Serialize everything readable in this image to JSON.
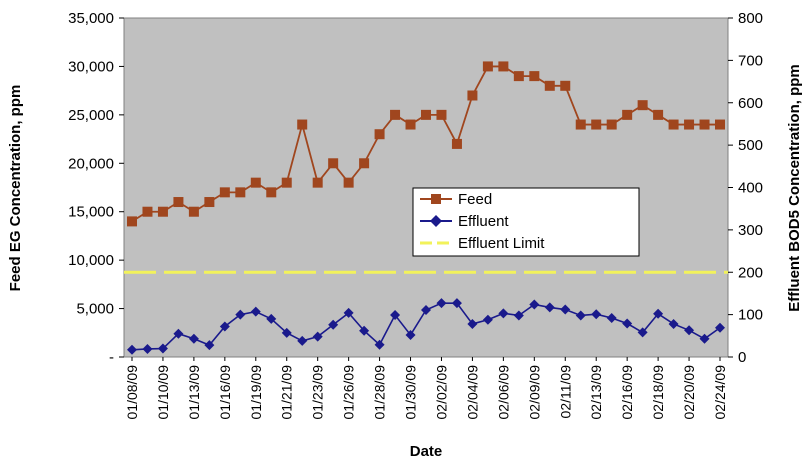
{
  "chart_data": {
    "type": "line",
    "xlabel": "Date",
    "ylabel_left": "Feed EG Concentration, ppm",
    "ylabel_right": "Effluent BOD5 Concentration, ppm",
    "ylim_left": [
      0,
      35000
    ],
    "ylim_right": [
      0,
      800
    ],
    "yticks_left": [
      "-",
      "5,000",
      "10,000",
      "15,000",
      "20,000",
      "25,000",
      "30,000",
      "35,000"
    ],
    "yticks_right": [
      "0",
      "100",
      "200",
      "300",
      "400",
      "500",
      "600",
      "700",
      "800"
    ],
    "x_tick_labels": [
      "01/08/09",
      "01/10/09",
      "01/13/09",
      "01/16/09",
      "01/19/09",
      "01/21/09",
      "01/23/09",
      "01/26/09",
      "01/28/09",
      "01/30/09",
      "02/02/09",
      "02/04/09",
      "02/06/09",
      "02/09/09",
      "02/11/09",
      "02/13/09",
      "02/16/09",
      "02/18/09",
      "02/20/09",
      "02/24/09"
    ],
    "grid": false,
    "legend_position": "center-right",
    "plot_background": "#c0c0c0",
    "series": [
      {
        "name": "Feed",
        "axis": "left",
        "color": "#a0461e",
        "marker": "square",
        "values": [
          14000,
          15000,
          15000,
          16000,
          15000,
          16000,
          17000,
          17000,
          18000,
          17000,
          18000,
          24000,
          18000,
          20000,
          18000,
          20000,
          23000,
          25000,
          24000,
          25000,
          25000,
          22000,
          27000,
          30000,
          30000,
          29000,
          29000,
          28000,
          28000,
          24000,
          24000,
          24000,
          25000,
          26000,
          25000,
          24000,
          24000,
          24000,
          24000
        ]
      },
      {
        "name": "Effluent",
        "axis": "right",
        "color": "#1a1a8c",
        "marker": "diamond",
        "values": [
          17,
          19,
          20,
          55,
          43,
          28,
          72,
          100,
          107,
          90,
          57,
          38,
          48,
          76,
          104,
          62,
          29,
          99,
          52,
          111,
          127,
          127,
          78,
          88,
          103,
          98,
          124,
          117,
          112,
          98,
          101,
          92,
          79,
          58,
          102,
          78,
          63,
          43,
          69
        ]
      },
      {
        "name": "Effluent Limit",
        "axis": "right",
        "color": "#f2f25a",
        "style": "dashed",
        "values": [
          200,
          200
        ]
      }
    ]
  }
}
